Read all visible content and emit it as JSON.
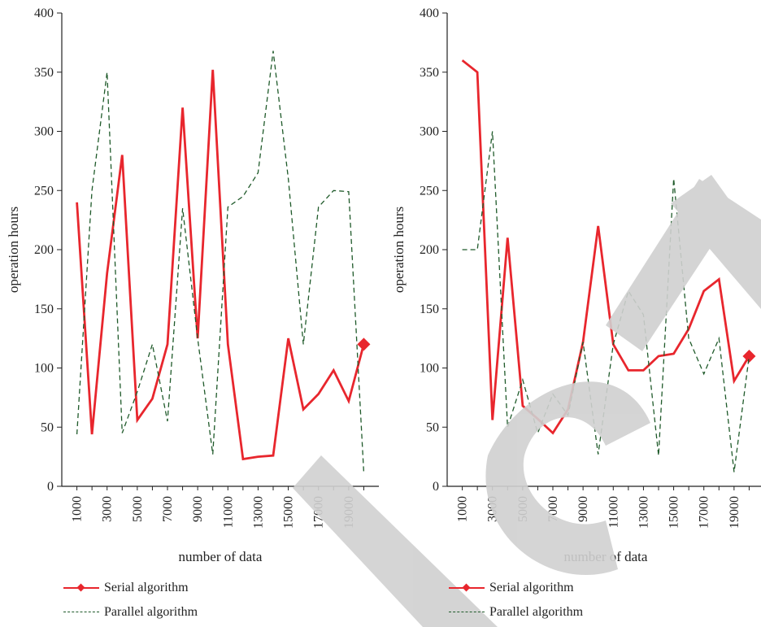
{
  "chart_data": [
    {
      "type": "line",
      "ylabel": "operation hours",
      "xlabel": "number of data",
      "ylim": [
        0,
        400
      ],
      "y_ticks": [
        "0",
        "50",
        "100",
        "150",
        "200",
        "250",
        "300",
        "350",
        "400"
      ],
      "x_ticks": [
        "1000",
        "3000",
        "5000",
        "7000",
        "9000",
        "11000",
        "13000",
        "15000",
        "17000",
        "19000"
      ],
      "x": [
        1000,
        2000,
        3000,
        4000,
        5000,
        6000,
        7000,
        8000,
        9000,
        10000,
        11000,
        12000,
        13000,
        14000,
        15000,
        16000,
        17000,
        18000,
        19000,
        20000
      ],
      "series": [
        {
          "name": "Serial algorithm",
          "color": "#e8262d",
          "style": "solid-diamond",
          "values": [
            240,
            44,
            180,
            280,
            56,
            74,
            120,
            320,
            125,
            352,
            120,
            23,
            25,
            26,
            125,
            65,
            78,
            98,
            72,
            120
          ]
        },
        {
          "name": "Parallel algorithm",
          "color": "#1f5a2a",
          "style": "dashed",
          "values": [
            44,
            250,
            350,
            45,
            80,
            120,
            55,
            235,
            125,
            27,
            236,
            245,
            265,
            368,
            260,
            120,
            236,
            250,
            249,
            12
          ]
        }
      ],
      "legend": "bottom-left",
      "grid": false
    },
    {
      "type": "line",
      "ylabel": "operation hours",
      "xlabel": "number of data",
      "ylim": [
        0,
        400
      ],
      "y_ticks": [
        "0",
        "50",
        "100",
        "150",
        "200",
        "250",
        "300",
        "350",
        "400"
      ],
      "x_ticks": [
        "1000",
        "3000",
        "5000",
        "7000",
        "9000",
        "11000",
        "13000",
        "15000",
        "17000",
        "19000"
      ],
      "x": [
        1000,
        2000,
        3000,
        4000,
        5000,
        6000,
        7000,
        8000,
        9000,
        10000,
        11000,
        12000,
        13000,
        14000,
        15000,
        16000,
        17000,
        18000,
        19000,
        20000
      ],
      "series": [
        {
          "name": "Serial algorithm",
          "color": "#e8262d",
          "style": "solid-diamond",
          "values": [
            360,
            350,
            56,
            210,
            68,
            57,
            45,
            65,
            122,
            220,
            120,
            98,
            98,
            110,
            112,
            133,
            165,
            175,
            89,
            110
          ]
        },
        {
          "name": "Parallel algorithm",
          "color": "#1f5a2a",
          "style": "dashed",
          "values": [
            200,
            200,
            300,
            50,
            90,
            45,
            78,
            60,
            122,
            27,
            120,
            165,
            145,
            26,
            260,
            125,
            95,
            125,
            12,
            110
          ]
        }
      ],
      "legend": "bottom-left",
      "grid": false
    }
  ],
  "watermark": {
    "color": "#d0d0d0"
  }
}
